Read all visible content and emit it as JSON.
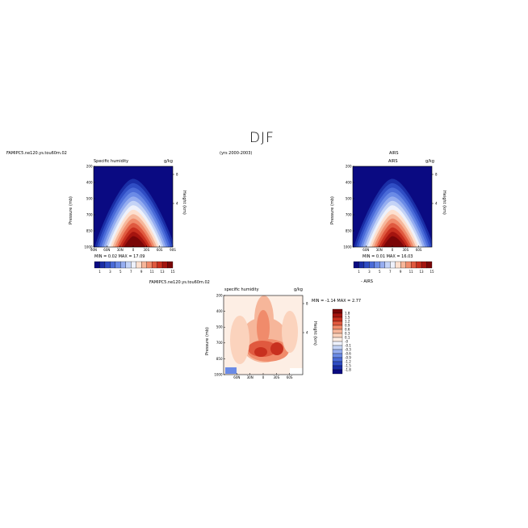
{
  "page": {
    "main_title": "DJF",
    "model_case": "FAMIPC5.ne120.ys.tou60m.02",
    "years": "(yrs 2000-2003)",
    "obs_name": "AIRS"
  },
  "chart_data": [
    {
      "type": "contour",
      "panel": "model",
      "title_left": "Specific humidity",
      "units": "g/kg",
      "ylabel": "Pressure (mb)",
      "ylabel_right": "Height (km)",
      "yticks": [
        "200",
        "400",
        "500",
        "700",
        "850",
        "1000"
      ],
      "yticks_right": [
        "8",
        "4"
      ],
      "xticks": [
        "90N",
        "60N",
        "30N",
        "0",
        "30S",
        "60S",
        "90S"
      ],
      "stats": "MIN =    0.02    MAX =    17.09",
      "colorbar_ticks": [
        "1",
        "3",
        "5",
        "7",
        "9",
        "11",
        "13",
        "15"
      ],
      "colorbar_colors": [
        "#0a0a82",
        "#1a2ea6",
        "#2f4dc4",
        "#4a6bd8",
        "#6b8be6",
        "#95adf0",
        "#c4d3f6",
        "#eef1fb",
        "#fde0cf",
        "#f6b69a",
        "#f08b6b",
        "#e0593f",
        "#c8301f",
        "#a5140f",
        "#7a0607"
      ],
      "ylim_mb": [
        1000,
        200
      ]
    },
    {
      "type": "contour",
      "panel": "obs",
      "title_left": "",
      "units": "g/kg",
      "ylabel": "Pressure (mb)",
      "ylabel_right": "Height (km)",
      "yticks": [
        "200",
        "400",
        "500",
        "700",
        "850",
        "1000"
      ],
      "yticks_right": [
        "8",
        "4"
      ],
      "xticks": [
        "60N",
        "30N",
        "0",
        "30S",
        "60S"
      ],
      "stats": "MIN =    0.01    MAX =    16.03",
      "colorbar_ticks": [
        "1",
        "3",
        "5",
        "7",
        "9",
        "11",
        "13",
        "15"
      ],
      "colorbar_label": "- AIRS",
      "ylim_mb": [
        1000,
        200
      ]
    },
    {
      "type": "contour",
      "panel": "difference",
      "title_left": "specific humidity",
      "units": "g/kg",
      "ylabel": "Pressure (mb)",
      "ylabel_right": "Height (km)",
      "yticks": [
        "200",
        "400",
        "500",
        "700",
        "850",
        "1000"
      ],
      "yticks_right": [
        "8",
        "4"
      ],
      "xticks": [
        "60N",
        "30N",
        "0",
        "30S",
        "60S"
      ],
      "stats": "MIN =   -1.14    MAX =    2.77",
      "colorbar_ticks": [
        "1.8",
        "1.5",
        "1.2",
        "0.9",
        "0.6",
        "0.3",
        "0.1",
        "-0",
        "-0.1",
        "-0.3",
        "-0.6",
        "-0.9",
        "-1.2",
        "-1.5",
        "-1.8"
      ],
      "colorbar_colors": [
        "#7a0607",
        "#a5140f",
        "#c8301f",
        "#e0593f",
        "#f08b6b",
        "#f6b69a",
        "#fbd3bd",
        "#fdeee4",
        "#eef1fb",
        "#c4d3f6",
        "#95adf0",
        "#6b8be6",
        "#4a6bd8",
        "#2f4dc4",
        "#1a2ea6",
        "#0a0a82"
      ],
      "ylim_mb": [
        1000,
        200
      ]
    }
  ]
}
